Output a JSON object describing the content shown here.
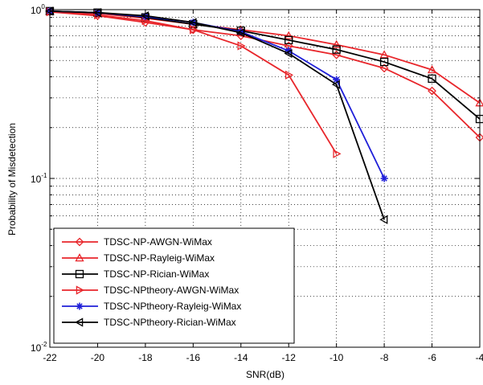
{
  "chart_data": {
    "type": "line",
    "title": "",
    "xlabel": "SNR(dB)",
    "ylabel": "Probability of Misdetection",
    "xlim": [
      -22,
      -4
    ],
    "ylim": [
      0.01,
      1
    ],
    "yscale": "log",
    "grid": true,
    "legend_position": "bottom-left",
    "x_ticks": [
      "-22",
      "-20",
      "-18",
      "-16",
      "-14",
      "-12",
      "-10",
      "-8",
      "-6",
      "-4"
    ],
    "y_ticks": [
      {
        "base": "10",
        "exp": "-2"
      },
      {
        "base": "10",
        "exp": "-1"
      },
      {
        "base": "10",
        "exp": "0"
      }
    ],
    "series": [
      {
        "name": "TDSC-NP-AWGN-WiMax",
        "color": "#e8262b",
        "marker": "diamond",
        "x": [
          -22,
          -20,
          -18,
          -16,
          -14,
          -12,
          -10,
          -8,
          -6,
          -4
        ],
        "y": [
          0.97,
          0.92,
          0.84,
          0.76,
          0.7,
          0.61,
          0.54,
          0.45,
          0.33,
          0.175
        ]
      },
      {
        "name": "TDSC-NP-Rayleig-WiMax",
        "color": "#e8262b",
        "marker": "triangle-up",
        "x": [
          -22,
          -20,
          -18,
          -16,
          -14,
          -12,
          -10,
          -8,
          -6,
          -4
        ],
        "y": [
          0.97,
          0.95,
          0.89,
          0.82,
          0.76,
          0.7,
          0.62,
          0.54,
          0.44,
          0.28
        ]
      },
      {
        "name": "TDSC-NP-Rician-WiMax",
        "color": "#000000",
        "marker": "square",
        "x": [
          -22,
          -20,
          -18,
          -16,
          -14,
          -12,
          -10,
          -8,
          -6,
          -4
        ],
        "y": [
          0.98,
          0.96,
          0.9,
          0.82,
          0.75,
          0.66,
          0.58,
          0.49,
          0.39,
          0.225
        ]
      },
      {
        "name": "TDSC-NPtheory-AWGN-WiMax",
        "color": "#e8262b",
        "marker": "triangle-right",
        "x": [
          -22,
          -20,
          -18,
          -16,
          -14,
          -12,
          -10
        ],
        "y": [
          0.97,
          0.93,
          0.86,
          0.76,
          0.61,
          0.41,
          0.14
        ]
      },
      {
        "name": "TDSC-NPtheory-Rayleig-WiMax",
        "color": "#1f1fd8",
        "marker": "star",
        "x": [
          -22,
          -20,
          -18,
          -16,
          -14,
          -12,
          -10,
          -8
        ],
        "y": [
          0.98,
          0.96,
          0.91,
          0.84,
          0.74,
          0.57,
          0.385,
          0.1
        ]
      },
      {
        "name": "TDSC-NPtheory-Rician-WiMax",
        "color": "#000000",
        "marker": "triangle-left",
        "x": [
          -22,
          -20,
          -18,
          -16,
          -14,
          -12,
          -10,
          -8
        ],
        "y": [
          0.98,
          0.96,
          0.92,
          0.84,
          0.73,
          0.55,
          0.36,
          0.057
        ]
      }
    ]
  }
}
